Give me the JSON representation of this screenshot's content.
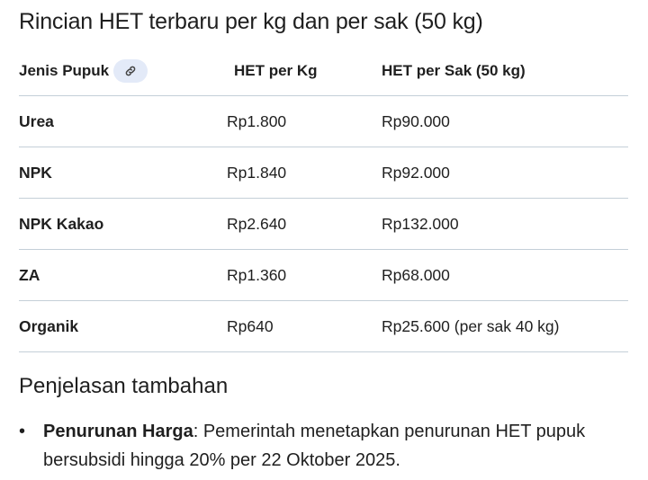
{
  "title": "Rincian HET terbaru per kg dan per sak (50 kg)",
  "table": {
    "headers": [
      "Jenis Pupuk",
      "HET per Kg",
      "HET per Sak (50 kg)"
    ],
    "header_icon": "link-icon",
    "rows": [
      [
        "Urea",
        "Rp1.800",
        "Rp90.000"
      ],
      [
        "NPK",
        "Rp1.840",
        "Rp92.000"
      ],
      [
        "NPK Kakao",
        "Rp2.640",
        "Rp132.000"
      ],
      [
        "ZA",
        "Rp1.360",
        "Rp68.000"
      ],
      [
        "Organik",
        "Rp640",
        "Rp25.600 (per sak 40 kg)"
      ]
    ]
  },
  "section": {
    "heading": "Penjelasan tambahan",
    "bullets": [
      {
        "label": "Penurunan Harga",
        "text": ": Pemerintah menetapkan penurunan HET pupuk bersubsidi hingga 20% per 22 Oktober 2025."
      }
    ]
  }
}
